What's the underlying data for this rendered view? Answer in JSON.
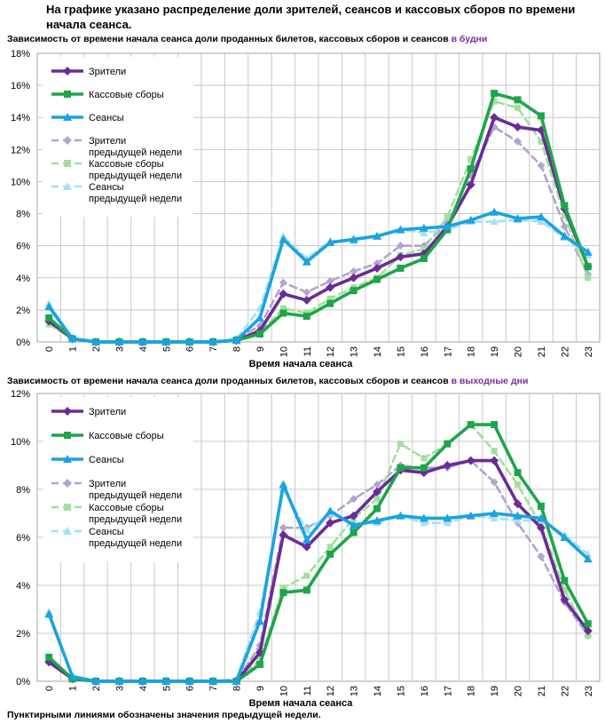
{
  "headline": "На графике указано распределение доли зрителей, сеансов и кассовых сборов по времени начала сеанса.",
  "subtitle1": {
    "text": "Зависимость от времени начала сеанса доли проданных билетов, кассовых сборов и сеансов ",
    "highlight": "в будни"
  },
  "subtitle2": {
    "text": "Зависимость от времени начала сеанса доли проданных билетов, кассовых сборов и сеансов ",
    "highlight": "в выходные дни"
  },
  "footnote": "Пунктирными линиями обозначены значения предыдущей недели.",
  "colors": {
    "viewers": "#6a2c96",
    "boxoffice": "#1ea54a",
    "sessions": "#1aa3e0",
    "viewers_prev": "#b3a4cf",
    "boxoffice_prev": "#a4df9e",
    "sessions_prev": "#a4e0f4"
  },
  "chart_data": [
    {
      "type": "line",
      "title": "Зависимость от времени начала сеанса доли проданных билетов, кассовых сборов и сеансов в будни",
      "xlabel": "Время начала сеанса",
      "ylabel": "",
      "x": [
        0,
        1,
        2,
        3,
        4,
        5,
        6,
        7,
        8,
        9,
        10,
        11,
        12,
        13,
        14,
        15,
        16,
        17,
        18,
        19,
        20,
        21,
        22,
        23
      ],
      "ylim": [
        0,
        18
      ],
      "yticks": [
        0,
        2,
        4,
        6,
        8,
        10,
        12,
        14,
        16,
        18
      ],
      "ytick_labels": [
        "0%",
        "2%",
        "4%",
        "6%",
        "8%",
        "10%",
        "12%",
        "14%",
        "16%",
        "18%"
      ],
      "legend": "top-left",
      "series": [
        {
          "key": "viewers",
          "name": "Зрители",
          "dashed": false,
          "marker": "diamond",
          "values": [
            1.3,
            0.2,
            0.0,
            0.0,
            0.0,
            0.0,
            0.0,
            0.0,
            0.1,
            0.7,
            3.0,
            2.6,
            3.4,
            4.0,
            4.6,
            5.3,
            5.5,
            7.2,
            9.8,
            14.0,
            13.4,
            13.2,
            8.3,
            4.7
          ]
        },
        {
          "key": "boxoffice",
          "name": "Кассовые сборы",
          "dashed": false,
          "marker": "square",
          "values": [
            1.5,
            0.2,
            0.0,
            0.0,
            0.0,
            0.0,
            0.0,
            0.0,
            0.1,
            0.5,
            1.8,
            1.6,
            2.4,
            3.2,
            3.9,
            4.6,
            5.2,
            7.0,
            10.8,
            15.5,
            15.1,
            14.1,
            8.5,
            4.7
          ]
        },
        {
          "key": "sessions",
          "name": "Сеансы",
          "dashed": false,
          "marker": "triangle",
          "values": [
            2.2,
            0.2,
            0.0,
            0.0,
            0.0,
            0.0,
            0.0,
            0.0,
            0.1,
            1.5,
            6.4,
            5.0,
            6.2,
            6.4,
            6.6,
            7.0,
            7.1,
            7.2,
            7.6,
            8.1,
            7.7,
            7.8,
            6.6,
            5.6
          ]
        },
        {
          "key": "viewers_prev",
          "name": "Зрители предыдущей недели",
          "dashed": true,
          "marker": "diamond",
          "values": [
            1.3,
            0.2,
            0.0,
            0.0,
            0.0,
            0.0,
            0.0,
            0.0,
            0.2,
            1.0,
            3.7,
            3.1,
            3.8,
            4.4,
            4.9,
            6.0,
            6.0,
            7.4,
            10.4,
            13.4,
            12.5,
            11.0,
            7.2,
            4.2
          ]
        },
        {
          "key": "boxoffice_prev",
          "name": "Кассовые сборы предыдущей недели",
          "dashed": true,
          "marker": "square",
          "values": [
            1.1,
            0.2,
            0.0,
            0.0,
            0.0,
            0.0,
            0.0,
            0.0,
            0.1,
            0.6,
            2.1,
            1.8,
            2.7,
            3.4,
            4.0,
            5.4,
            5.8,
            7.8,
            11.4,
            15.0,
            14.6,
            12.5,
            7.9,
            4.0
          ]
        },
        {
          "key": "sessions_prev",
          "name": "Сеансы предыдущей недели",
          "dashed": true,
          "marker": "triangle",
          "values": [
            2.4,
            0.2,
            0.0,
            0.0,
            0.0,
            0.0,
            0.0,
            0.0,
            0.2,
            2.1,
            6.6,
            5.2,
            6.3,
            6.3,
            6.6,
            7.0,
            6.8,
            7.0,
            7.5,
            7.5,
            7.6,
            7.5,
            6.5,
            5.4
          ]
        }
      ]
    },
    {
      "type": "line",
      "title": "Зависимость от времени начала сеанса доли проданных билетов, кассовых сборов и сеансов в выходные дни",
      "xlabel": "Время начала сеанса",
      "ylabel": "",
      "x": [
        0,
        1,
        2,
        3,
        4,
        5,
        6,
        7,
        8,
        9,
        10,
        11,
        12,
        13,
        14,
        15,
        16,
        17,
        18,
        19,
        20,
        21,
        22,
        23
      ],
      "ylim": [
        0,
        12
      ],
      "yticks": [
        0,
        2,
        4,
        6,
        8,
        10,
        12
      ],
      "ytick_labels": [
        "0%",
        "2%",
        "4%",
        "6%",
        "8%",
        "10%",
        "12%"
      ],
      "legend": "top-left",
      "series": [
        {
          "key": "viewers",
          "name": "Зрители",
          "dashed": false,
          "marker": "diamond",
          "values": [
            0.8,
            0.1,
            0.0,
            0.0,
            0.0,
            0.0,
            0.0,
            0.0,
            0.0,
            1.2,
            6.1,
            5.6,
            6.6,
            6.9,
            7.9,
            8.8,
            8.7,
            9.0,
            9.2,
            9.2,
            7.4,
            6.4,
            3.4,
            2.1
          ]
        },
        {
          "key": "boxoffice",
          "name": "Кассовые сборы",
          "dashed": false,
          "marker": "square",
          "values": [
            1.0,
            0.1,
            0.0,
            0.0,
            0.0,
            0.0,
            0.0,
            0.0,
            0.0,
            0.7,
            3.7,
            3.8,
            5.3,
            6.2,
            7.2,
            8.9,
            8.9,
            9.9,
            10.7,
            10.7,
            8.7,
            7.3,
            4.2,
            2.4
          ]
        },
        {
          "key": "sessions",
          "name": "Сеансы",
          "dashed": false,
          "marker": "triangle",
          "values": [
            2.8,
            0.2,
            0.0,
            0.0,
            0.0,
            0.0,
            0.0,
            0.0,
            0.0,
            2.5,
            8.2,
            5.9,
            7.1,
            6.5,
            6.7,
            6.9,
            6.8,
            6.8,
            6.9,
            7.0,
            6.9,
            6.8,
            6.0,
            5.1
          ]
        },
        {
          "key": "viewers_prev",
          "name": "Зрители предыдущей недели",
          "dashed": true,
          "marker": "diamond",
          "values": [
            0.8,
            0.1,
            0.0,
            0.0,
            0.0,
            0.0,
            0.0,
            0.0,
            0.0,
            1.5,
            6.4,
            6.4,
            6.9,
            7.6,
            8.2,
            9.0,
            8.9,
            8.9,
            9.2,
            8.3,
            6.6,
            5.2,
            3.3,
            1.9
          ]
        },
        {
          "key": "boxoffice_prev",
          "name": "Кассовые сборы предыдущей недели",
          "dashed": true,
          "marker": "square",
          "values": [
            0.9,
            0.1,
            0.0,
            0.0,
            0.0,
            0.0,
            0.0,
            0.0,
            0.0,
            0.9,
            3.9,
            4.4,
            5.6,
            6.8,
            7.6,
            9.9,
            9.3,
            9.9,
            10.7,
            9.6,
            8.2,
            6.5,
            3.8,
            1.9
          ]
        },
        {
          "key": "sessions_prev",
          "name": "Сеансы предыдущей недели",
          "dashed": true,
          "marker": "triangle",
          "values": [
            2.9,
            0.2,
            0.0,
            0.0,
            0.0,
            0.0,
            0.0,
            0.0,
            0.1,
            2.9,
            8.0,
            6.3,
            7.0,
            6.6,
            6.6,
            6.9,
            6.6,
            6.6,
            6.9,
            6.8,
            6.7,
            6.7,
            6.1,
            5.3
          ]
        }
      ]
    }
  ]
}
